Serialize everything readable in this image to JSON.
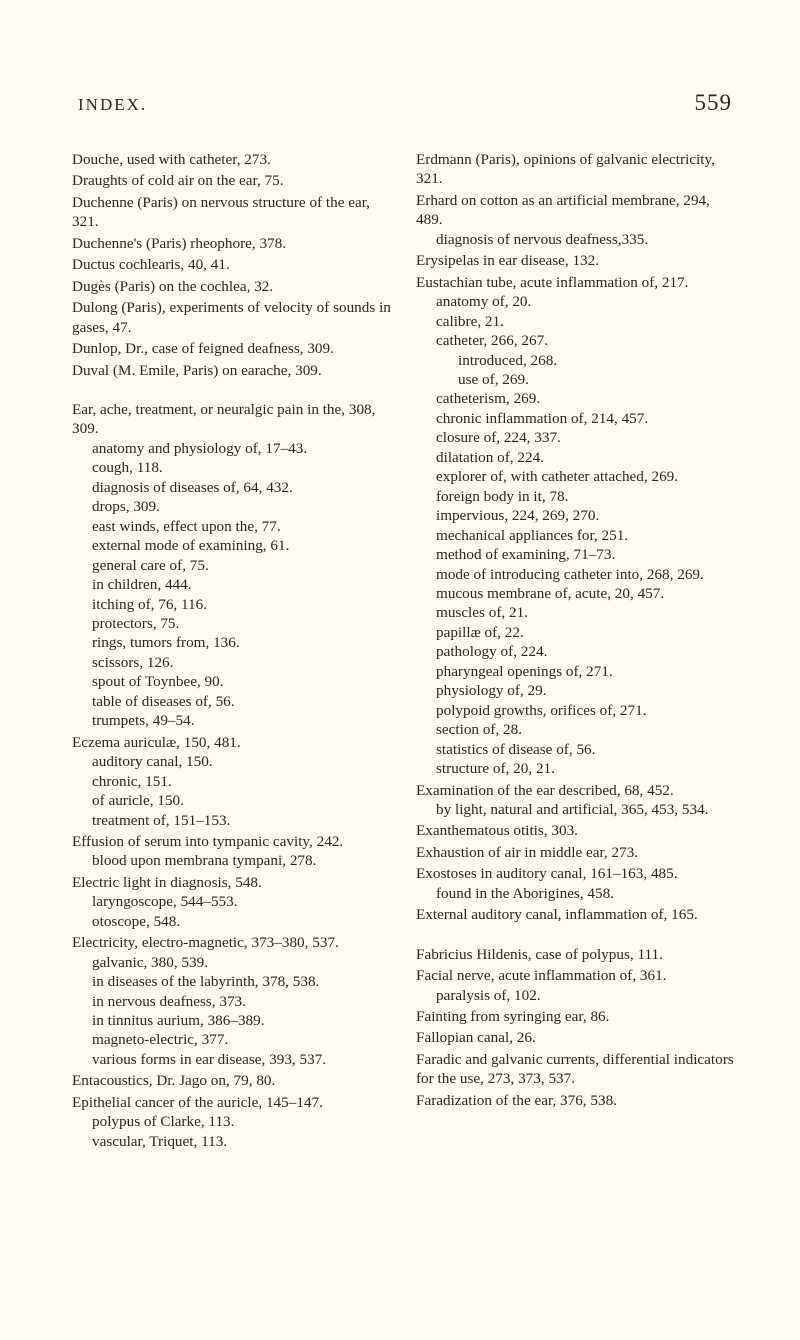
{
  "page": {
    "running_title": "INDEX.",
    "page_number": "559"
  },
  "col1": {
    "douche": "Douche, used with catheter, 273.",
    "draughts": "Draughts of cold air on the ear, 75.",
    "duchenne1": "Duchenne (Paris) on nervous structure of the ear, 321.",
    "duchenne2": "Duchenne's (Paris) rheophore, 378.",
    "ductus": "Ductus cochlearis, 40, 41.",
    "duges": "Dugès (Paris) on the cochlea, 32.",
    "dulong": "Dulong (Paris), experiments of velocity of sounds in gases, 47.",
    "dunlop": "Dunlop, Dr., case of feigned deafness, 309.",
    "duval": "Duval (M. Emile, Paris) on earache, 309.",
    "ear_head": "Ear, ache, treatment, or neuralgic pain in the, 308, 309.",
    "ear": [
      "anatomy and physiology of, 17–43.",
      "cough, 118.",
      "diagnosis of diseases of, 64, 432.",
      "drops, 309.",
      "east winds, effect upon the, 77.",
      "external mode of examining, 61.",
      "general care of, 75.",
      "in children, 444.",
      "itching of, 76, 116.",
      "protectors, 75.",
      "rings, tumors from, 136.",
      "scissors, 126.",
      "spout of Toynbee, 90.",
      "table of diseases of, 56.",
      "trumpets, 49–54."
    ],
    "eczema_head": "Eczema auriculæ, 150, 481.",
    "eczema": [
      "auditory canal, 150.",
      "chronic, 151.",
      "of auricle, 150.",
      "treatment of, 151–153."
    ],
    "effusion_head": "Effusion of serum into tympanic cavity, 242.",
    "effusion": [
      "blood upon membrana tympani, 278."
    ],
    "electric_head": "Electric light in diagnosis, 548.",
    "electric": [
      "laryngoscope, 544–553.",
      "otoscope, 548."
    ],
    "electricity_head": "Electricity, electro-magnetic, 373–380, 537.",
    "electricity": [
      "galvanic, 380, 539.",
      "in diseases of the labyrinth, 378, 538.",
      "in nervous deafness, 373.",
      "in tinnitus aurium, 386–389.",
      "magneto-electric, 377.",
      "various forms in ear disease, 393, 537."
    ],
    "entacoustics": "Entacoustics, Dr. Jago on, 79, 80.",
    "epithelial_head": "Epithelial cancer of the auricle, 145–147.",
    "epithelial": [
      "polypus of Clarke, 113.",
      "vascular, Triquet, 113."
    ]
  },
  "col2": {
    "erdmann": "Erdmann (Paris), opinions of galvanic electricity, 321.",
    "erhard_head": "Erhard on cotton as an artificial membrane, 294, 489.",
    "erhard": [
      "diagnosis of nervous deafness,335."
    ],
    "erysipelas": "Erysipelas in ear disease, 132.",
    "eustachian_head": "Eustachian tube, acute inflammation of, 217.",
    "eustachian": [
      "anatomy of, 20.",
      "calibre, 21.",
      "catheter, 266, 267."
    ],
    "eustachian_cath": [
      "introduced, 268.",
      "use of, 269."
    ],
    "eustachian2": [
      "catheterism, 269.",
      "chronic inflammation of, 214, 457.",
      "closure of, 224, 337.",
      "dilatation of, 224.",
      "explorer of, with catheter attached, 269.",
      "foreign body in it, 78.",
      "impervious, 224, 269, 270.",
      "mechanical appliances for, 251.",
      "method of examining, 71–73.",
      "mode of introducing catheter into, 268, 269.",
      "mucous membrane of, acute, 20, 457.",
      "muscles of, 21.",
      "papillæ of, 22.",
      "pathology of, 224.",
      "pharyngeal openings of, 271.",
      "physiology of, 29.",
      "polypoid growths, orifices of, 271.",
      "section of, 28.",
      "statistics of disease of, 56.",
      "structure of, 20, 21."
    ],
    "exam_head": "Examination of the ear described, 68, 452.",
    "exam": [
      "by light, natural and artificial, 365, 453, 534."
    ],
    "exanth": "Exanthematous otitis, 303.",
    "exhaust": "Exhaustion of air in middle ear, 273.",
    "exost_head": "Exostoses in auditory canal, 161–163, 485.",
    "exost": [
      "found in the Aborigines, 458."
    ],
    "external": "External auditory canal, inflammation of, 165.",
    "fabricius": "Fabricius Hildenis, case of polypus, 111.",
    "facial_head": "Facial nerve, acute inflammation of, 361.",
    "facial": [
      "paralysis of, 102."
    ],
    "fainting": "Fainting from syringing ear, 86.",
    "fallopian": "Fallopian canal, 26.",
    "faradic": "Faradic and galvanic currents, differential indicators for the use, 273, 373, 537.",
    "faradization": "Faradization of the ear, 376, 538."
  }
}
